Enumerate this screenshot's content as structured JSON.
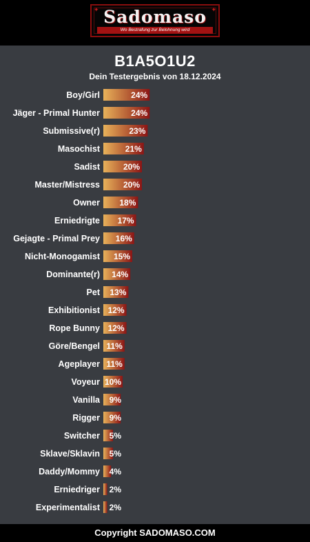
{
  "header": {
    "logo_text": "Sadomaso",
    "logo_tagline": "Wo Bestrafung zur Belohnung wird"
  },
  "result": {
    "title": "B1A5O1U2",
    "subtitle": "Dein Testergebnis von 18.12.2024"
  },
  "chart_data": {
    "type": "bar",
    "orientation": "horizontal",
    "categories": [
      "Boy/Girl",
      "Jäger - Primal Hunter",
      "Submissive(r)",
      "Masochist",
      "Sadist",
      "Master/Mistress",
      "Owner",
      "Erniedrigte",
      "Gejagte - Primal Prey",
      "Nicht-Monogamist",
      "Dominante(r)",
      "Pet",
      "Exhibitionist",
      "Rope Bunny",
      "Göre/Bengel",
      "Ageplayer",
      "Voyeur",
      "Vanilla",
      "Rigger",
      "Switcher",
      "Sklave/Sklavin",
      "Daddy/Mommy",
      "Erniedriger",
      "Experimentalist"
    ],
    "values": [
      24,
      24,
      23,
      21,
      20,
      20,
      18,
      17,
      16,
      15,
      14,
      13,
      12,
      12,
      11,
      11,
      10,
      9,
      9,
      5,
      5,
      4,
      2,
      2
    ],
    "value_suffix": "%",
    "colors": {
      "gradient_start": "#e8b25a",
      "gradient_end": "#8b1515"
    }
  },
  "footer": {
    "copyright": "Copyright SADOMASO.COM"
  }
}
